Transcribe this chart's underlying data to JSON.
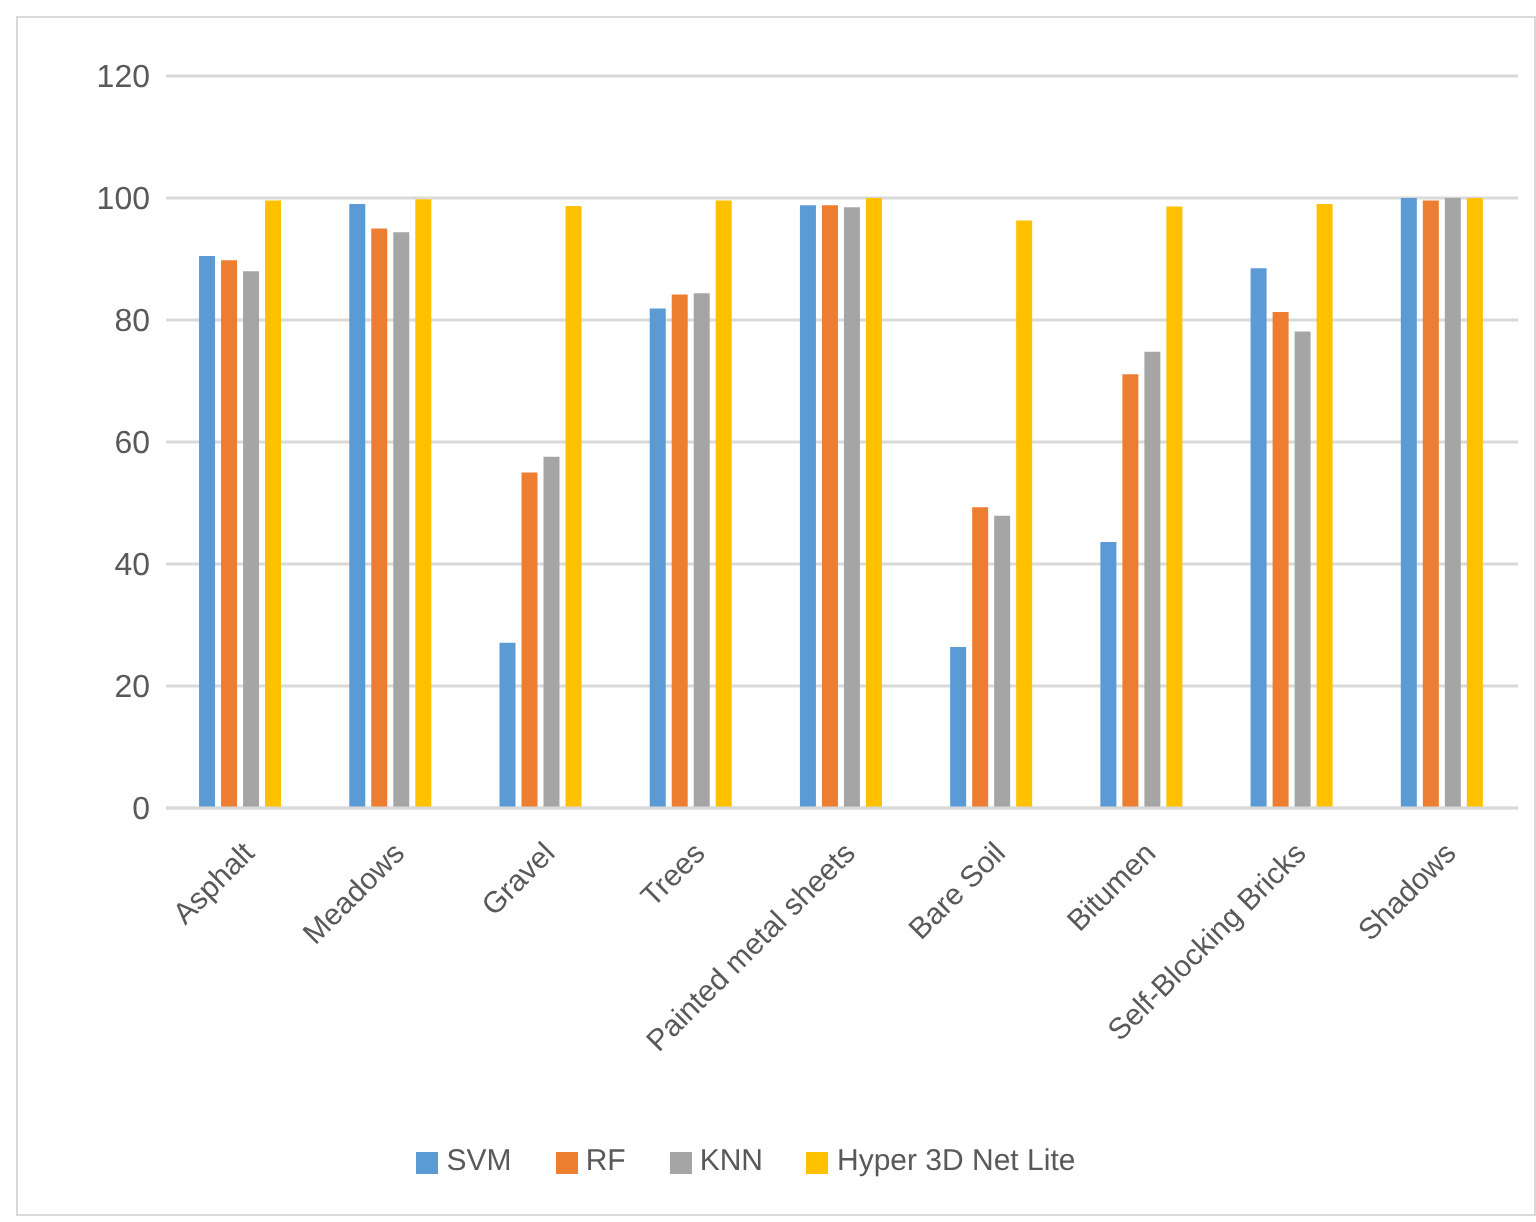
{
  "chart_data": {
    "type": "bar",
    "categories": [
      "Asphalt",
      "Meadows",
      "Gravel",
      "Trees",
      "Painted metal sheets",
      "Bare Soil",
      "Bitumen",
      "Self-Blocking Bricks",
      "Shadows"
    ],
    "series": [
      {
        "name": "SVM",
        "color": "#5b9bd5",
        "values": [
          90.5,
          99.0,
          27.1,
          81.9,
          98.8,
          26.4,
          43.6,
          88.5,
          100
        ]
      },
      {
        "name": "RF",
        "color": "#ed7d31",
        "values": [
          89.8,
          95.0,
          55.0,
          84.2,
          98.8,
          49.3,
          71.1,
          81.3,
          99.6
        ]
      },
      {
        "name": "KNN",
        "color": "#a5a5a5",
        "values": [
          88.0,
          94.4,
          57.6,
          84.4,
          98.5,
          47.9,
          74.8,
          78.1,
          100
        ]
      },
      {
        "name": "Hyper 3D Net Lite",
        "color": "#ffc000",
        "values": [
          99.6,
          99.8,
          98.7,
          99.6,
          100,
          96.3,
          98.6,
          99.0,
          100
        ]
      }
    ],
    "ylim": [
      0,
      120
    ],
    "yticks": [
      0,
      20,
      40,
      60,
      80,
      100,
      120
    ],
    "grid": "y",
    "legend": "bottom"
  }
}
